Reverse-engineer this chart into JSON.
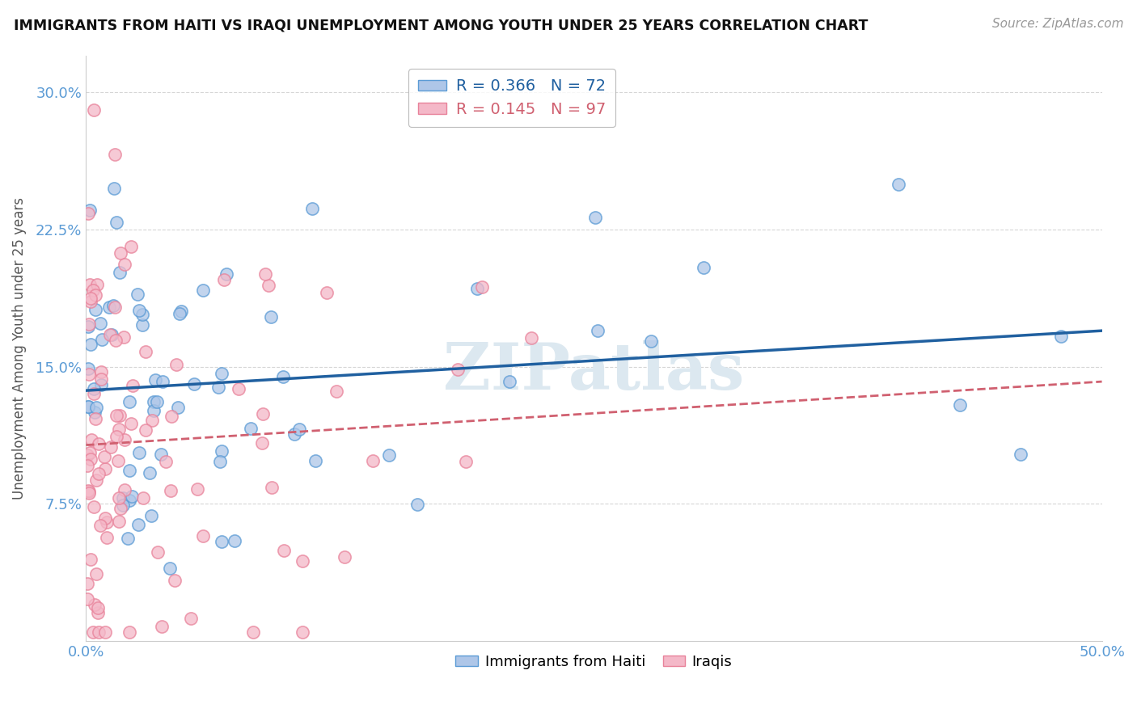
{
  "title": "IMMIGRANTS FROM HAITI VS IRAQI UNEMPLOYMENT AMONG YOUTH UNDER 25 YEARS CORRELATION CHART",
  "source": "Source: ZipAtlas.com",
  "ylabel": "Unemployment Among Youth under 25 years",
  "xlim": [
    0.0,
    0.5
  ],
  "ylim": [
    0.0,
    0.32
  ],
  "xtick_vals": [
    0.0,
    0.05,
    0.1,
    0.15,
    0.2,
    0.25,
    0.3,
    0.35,
    0.4,
    0.45,
    0.5
  ],
  "xticklabels": [
    "0.0%",
    "",
    "",
    "",
    "",
    "",
    "",
    "",
    "",
    "",
    "50.0%"
  ],
  "ytick_vals": [
    0.0,
    0.075,
    0.15,
    0.225,
    0.3
  ],
  "yticklabels": [
    "",
    "7.5%",
    "15.0%",
    "22.5%",
    "30.0%"
  ],
  "legend1_label": "R = 0.366   N = 72",
  "legend2_label": "R = 0.145   N = 97",
  "blue_color": "#aec6e8",
  "pink_color": "#f4b8c8",
  "blue_edge_color": "#5b9bd5",
  "pink_edge_color": "#e8829a",
  "blue_line_color": "#2060a0",
  "pink_line_color": "#d06070",
  "tick_color": "#5b9bd5",
  "grid_color": "#cccccc",
  "watermark_color": "#dce8f0",
  "haiti_seed": 12345,
  "iraq_seed": 67890
}
